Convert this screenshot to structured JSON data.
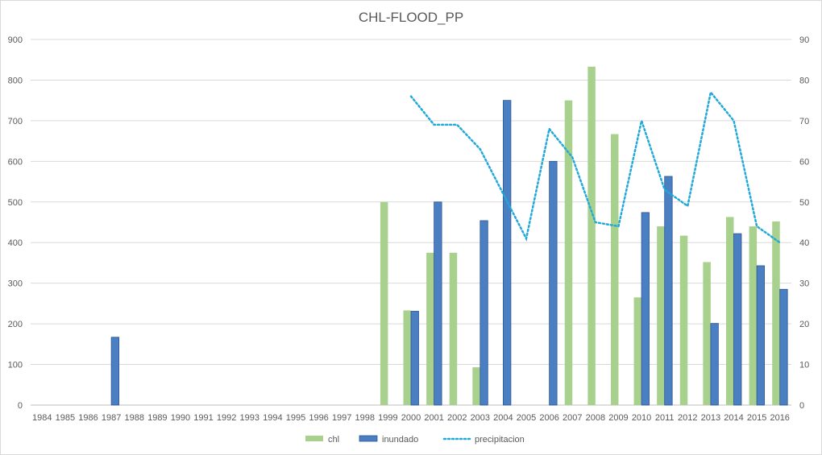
{
  "chart_data": {
    "type": "bar",
    "title": "CHL-FLOOD_PP",
    "xlabel": "",
    "ylabel": "",
    "ylim": [
      0,
      900
    ],
    "y2lim": [
      0,
      90
    ],
    "y_ticks": [
      "0",
      "100",
      "200",
      "300",
      "400",
      "500",
      "600",
      "700",
      "800",
      "900"
    ],
    "y2_ticks": [
      "0",
      "10",
      "20",
      "30",
      "40",
      "50",
      "60",
      "70",
      "80",
      "90"
    ],
    "categories": [
      "1984",
      "1985",
      "1986",
      "1987",
      "1988",
      "1989",
      "1990",
      "1991",
      "1992",
      "1993",
      "1994",
      "1995",
      "1996",
      "1997",
      "1998",
      "1999",
      "2000",
      "2001",
      "2002",
      "2003",
      "2004",
      "2005",
      "2006",
      "2007",
      "2008",
      "2009",
      "2010",
      "2011",
      "2012",
      "2013",
      "2014",
      "2015",
      "2016"
    ],
    "series": [
      {
        "name": "chl",
        "kind": "bar",
        "axis": "left",
        "color": "#a9d18e",
        "values": [
          null,
          null,
          null,
          null,
          null,
          null,
          null,
          null,
          null,
          null,
          null,
          null,
          null,
          null,
          null,
          500,
          233,
          375,
          375,
          93,
          null,
          null,
          null,
          750,
          833,
          667,
          265,
          440,
          417,
          352,
          463,
          440,
          452
        ]
      },
      {
        "name": "inundado",
        "kind": "bar",
        "axis": "left",
        "color": "#4a7fc1",
        "values": [
          null,
          null,
          null,
          167,
          null,
          null,
          null,
          null,
          null,
          null,
          null,
          null,
          null,
          null,
          null,
          null,
          231,
          500,
          null,
          454,
          750,
          null,
          600,
          null,
          null,
          null,
          474,
          563,
          null,
          201,
          422,
          343,
          285
        ]
      },
      {
        "name": "precipitacion",
        "kind": "line",
        "axis": "right",
        "color": "#22a9d8",
        "values": [
          null,
          null,
          null,
          null,
          null,
          null,
          null,
          null,
          null,
          null,
          null,
          null,
          null,
          null,
          null,
          null,
          76,
          69,
          69,
          63,
          52,
          41,
          68,
          61,
          45,
          44,
          70,
          53,
          49,
          77,
          70,
          44,
          40
        ]
      }
    ],
    "grid": true,
    "legend_position": "bottom"
  }
}
